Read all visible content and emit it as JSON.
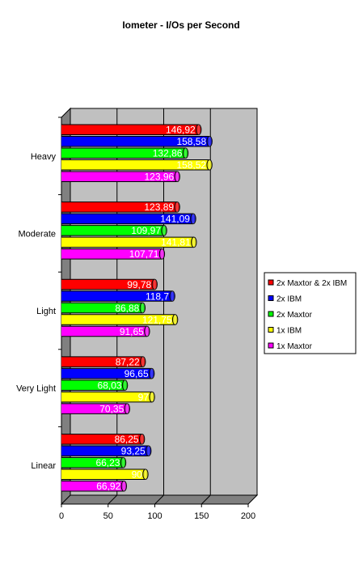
{
  "chart_data": {
    "type": "bar",
    "orientation": "horizontal",
    "title": "Iometer - I/Os per Second",
    "xlabel": "",
    "ylabel": "",
    "xlim": [
      0,
      200
    ],
    "ticks": [
      "0",
      "50",
      "100",
      "150",
      "200"
    ],
    "grid": true,
    "legend_position": "right",
    "categories": [
      "Heavy",
      "Moderate",
      "Light",
      "Very Light",
      "Linear"
    ],
    "series": [
      {
        "name": "2x Maxtor & 2x IBM",
        "color": "#ff0000",
        "values": [
          146.92,
          123.89,
          99.78,
          87.22,
          86.25
        ],
        "labels": [
          "146,92",
          "123,89",
          "99,78",
          "87,22",
          "86,25"
        ]
      },
      {
        "name": "2x IBM",
        "color": "#0000ff",
        "values": [
          158.58,
          141.09,
          118.7,
          96.65,
          93.25
        ],
        "labels": [
          "158,58",
          "141,09",
          "118,7",
          "96,65",
          "93,25"
        ]
      },
      {
        "name": "2x Maxtor",
        "color": "#00ff00",
        "values": [
          132.86,
          109.97,
          86.88,
          68.03,
          66.23
        ],
        "labels": [
          "132,86",
          "109,97",
          "86,88",
          "68,03",
          "66,23"
        ]
      },
      {
        "name": "1x IBM",
        "color": "#ffff00",
        "values": [
          158.52,
          141.81,
          121.75,
          97,
          90
        ],
        "labels": [
          "158,52",
          "141,81",
          "121,75",
          "97",
          "90"
        ]
      },
      {
        "name": "1x Maxtor",
        "color": "#ff00ff",
        "values": [
          123.96,
          107.71,
          91.65,
          70.35,
          66.92
        ],
        "labels": [
          "123,96",
          "107,71",
          "91,65",
          "70,35",
          "66,92"
        ]
      }
    ]
  }
}
